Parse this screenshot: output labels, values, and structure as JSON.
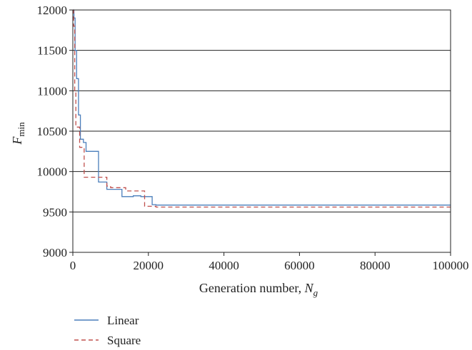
{
  "chart_data": {
    "type": "line",
    "xlabel": "Generation number, ",
    "xlabel_var": "N",
    "xlabel_sub": "g",
    "ylabel_var": "F",
    "ylabel_sub": "min",
    "xlim": [
      0,
      100000
    ],
    "ylim": [
      9000,
      12000
    ],
    "x_ticks": [
      0,
      20000,
      40000,
      60000,
      80000,
      100000
    ],
    "y_ticks": [
      9000,
      9500,
      10000,
      10500,
      11000,
      11500,
      12000
    ],
    "grid": "horizontal",
    "legend_position": "bottom-left",
    "series": [
      {
        "name": "Linear",
        "color": "#4a7ebb",
        "dash": "solid",
        "step_points": [
          [
            0,
            12000
          ],
          [
            300,
            11900
          ],
          [
            600,
            11500
          ],
          [
            1000,
            11150
          ],
          [
            1500,
            10700
          ],
          [
            2000,
            10400
          ],
          [
            2800,
            10360
          ],
          [
            3500,
            10250
          ],
          [
            6800,
            9870
          ],
          [
            9000,
            9780
          ],
          [
            13000,
            9690
          ],
          [
            16000,
            9700
          ],
          [
            18000,
            9690
          ],
          [
            21000,
            9590
          ],
          [
            22000,
            9585
          ],
          [
            100000,
            9585
          ]
        ]
      },
      {
        "name": "Square",
        "color": "#c0504d",
        "dash": "dashed",
        "step_points": [
          [
            0,
            12000
          ],
          [
            200,
            11800
          ],
          [
            500,
            11000
          ],
          [
            800,
            10550
          ],
          [
            1800,
            10300
          ],
          [
            3000,
            9930
          ],
          [
            9000,
            9820
          ],
          [
            10000,
            9800
          ],
          [
            14000,
            9760
          ],
          [
            19000,
            9570
          ],
          [
            22000,
            9560
          ],
          [
            100000,
            9560
          ]
        ]
      }
    ]
  }
}
